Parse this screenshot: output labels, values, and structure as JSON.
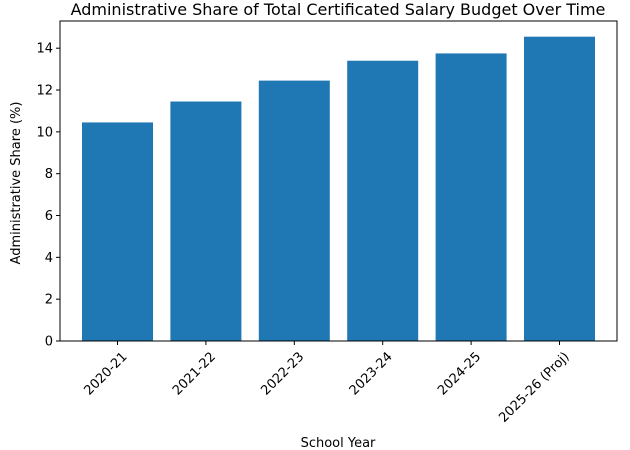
{
  "chart_data": {
    "type": "bar",
    "title": "Administrative Share of Total Certificated Salary Budget Over Time",
    "xlabel": "School Year",
    "ylabel": "Administrative Share (%)",
    "categories": [
      "2020-21",
      "2021-22",
      "2022-23",
      "2023-24",
      "2024-25",
      "2025-26 (Proj)"
    ],
    "values": [
      10.45,
      11.45,
      12.45,
      13.4,
      13.75,
      14.55
    ],
    "ylim": [
      0,
      15.3
    ],
    "yticks": [
      0,
      2,
      4,
      6,
      8,
      10,
      12,
      14
    ],
    "bar_color": "#1f77b4",
    "grid": false,
    "legend": "none"
  }
}
